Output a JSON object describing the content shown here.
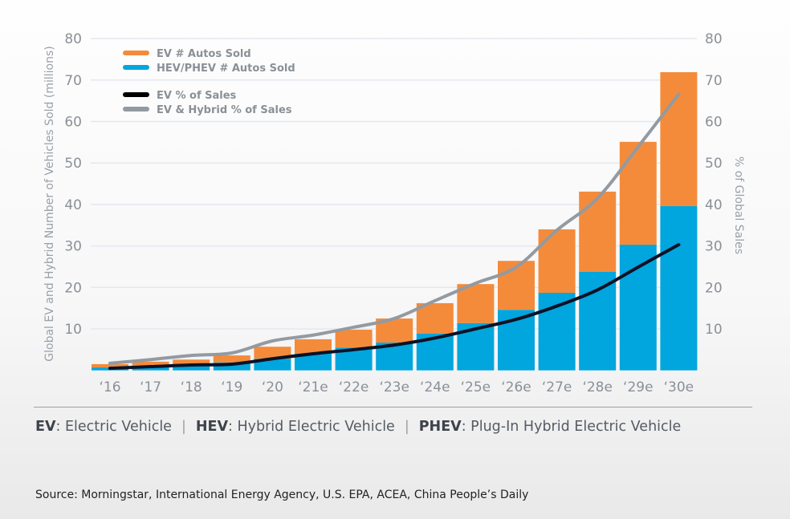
{
  "chart_data": {
    "type": "bar",
    "stacked": true,
    "categories": [
      "‘16",
      "‘17",
      "‘18",
      "‘19",
      "‘20",
      "‘21e",
      "‘22e",
      "‘23e",
      "‘24e",
      "‘25e",
      "‘26e",
      "‘27e",
      "‘28e",
      "‘29e",
      "‘30e"
    ],
    "bar_series": [
      {
        "name": "HEV/PHEV # Autos Sold",
        "color": "#00a6dd",
        "values": [
          0.7,
          0.9,
          1.1,
          1.9,
          2.8,
          4.0,
          5.5,
          6.7,
          8.9,
          11.4,
          14.6,
          18.7,
          23.8,
          30.3,
          39.6
        ]
      },
      {
        "name": "EV # Autos Sold",
        "color": "#f48b3b",
        "values": [
          0.8,
          1.2,
          1.5,
          1.7,
          2.9,
          3.5,
          4.3,
          5.8,
          7.3,
          9.4,
          11.8,
          15.3,
          19.3,
          24.8,
          32.3
        ]
      }
    ],
    "line_series": [
      {
        "name": "EV % of Sales",
        "color": "#0b1226",
        "axis": "right",
        "values": [
          0.5,
          0.9,
          1.3,
          1.5,
          2.8,
          4.0,
          5.0,
          6.1,
          7.8,
          10.0,
          12.3,
          15.5,
          19.4,
          24.9,
          30.3
        ]
      },
      {
        "name": "EV & Hybrid % of Sales",
        "color": "#939aa1",
        "axis": "right",
        "values": [
          1.7,
          2.6,
          3.6,
          4.2,
          7.1,
          8.5,
          10.4,
          12.5,
          16.8,
          21.0,
          24.9,
          33.8,
          41.5,
          53.9,
          66.6
        ]
      }
    ],
    "ylabel": "Global EV and Hybrid Number of Vehicles Sold (millions)",
    "y2label": "% of Global Sales",
    "ylim": [
      0,
      80
    ],
    "y2lim": [
      0,
      80
    ],
    "yticks": [
      "10",
      "20",
      "30",
      "40",
      "50",
      "60",
      "70",
      "80"
    ],
    "y2ticks": [
      "10",
      "20",
      "30",
      "40",
      "50",
      "60",
      "70",
      "80"
    ],
    "grid": true,
    "legend_placement": "top-left",
    "legend": [
      "EV # Autos Sold",
      "HEV/PHEV # Autos Sold",
      "EV % of Sales",
      "EV & Hybrid % of Sales"
    ]
  },
  "definitions": [
    {
      "abbr": "EV",
      "text": ": Electric Vehicle"
    },
    {
      "abbr": "HEV",
      "text": ": Hybrid Electric Vehicle"
    },
    {
      "abbr": "PHEV",
      "text": ": Plug-In Hybrid Electric Vehicle"
    }
  ],
  "separator": "|",
  "source": "Source: Morningstar, International Energy Agency, U.S. EPA, ACEA, China People’s Daily"
}
